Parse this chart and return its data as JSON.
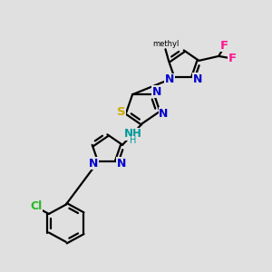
{
  "bg_color": "#e0e0e0",
  "figsize": [
    3.0,
    3.0
  ],
  "dpi": 100,
  "xlim": [
    -0.5,
    8.0
  ],
  "ylim": [
    -0.5,
    8.5
  ],
  "lw": 1.6,
  "N_color": "#0000cc",
  "S_color": "#ccaa00",
  "F_color": "#ff1493",
  "Cl_color": "#22bb22",
  "NH_color": "#009999"
}
